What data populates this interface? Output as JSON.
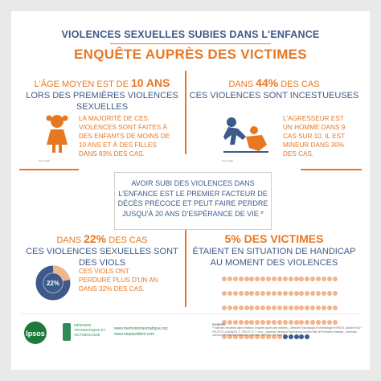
{
  "header": {
    "title_line1": "VIOLENCES SEXUELLES SUBIES DANS L'ENFANCE",
    "title_line2": "ENQUÊTE AUPRÈS DES VICTIMES"
  },
  "panel_top_left": {
    "head_line1_prefix": "L'ÂGE MOYEN EST DE ",
    "head_line1_value": "10 ANS",
    "head_line2": "LORS DES PREMIÈRES VIOLENCES SEXUELLES",
    "stat": "LA MAJORITÉ DE CES VIOLENCES SONT FAITES À DES ENFANTS DE MOINS DE 10 ANS ET À DES FILLES DANS 83% DES CAS.",
    "credit": "Icon credit"
  },
  "panel_top_right": {
    "head_line1_prefix": "DANS ",
    "head_line1_value": "44%",
    "head_line1_suffix": " DES CAS",
    "head_line2": "CES VIOLENCES SONT INCESTUEUSES",
    "stat": "L'AGRESSEUR EST UN HOMME DANS 9 CAS SUR 10. IL EST MINEUR DANS 30% DES CAS.",
    "credit": "Icon credit"
  },
  "center": {
    "text": "AVOIR SUBI DES VIOLENCES DANS L'ENFANCE EST LE PREMIER FACTEUR DE DÉCÈS PRÉCOCE ET PEUT FAIRE PERDRE JUSQU'À 20 ANS D'ESPÉRANCE DE VIE *"
  },
  "panel_bottom_left": {
    "head_line1_prefix": "DANS ",
    "head_line1_value": "22%",
    "head_line1_suffix": " DES CAS",
    "head_line2": "CES VIOLENCES SEXUELLES SONT DES VIOLS",
    "donut_value": 22,
    "donut_label": "22%",
    "stat": "CES VIOLS ONT PERDURÉ PLUS D'UN AN DANS 32% DES CAS."
  },
  "panel_bottom_right": {
    "head_line1_prefix": "",
    "head_line1_value": "5%",
    "head_line1_suffix": " DES VICTIMES",
    "head_line2": "ÉTAIENT EN SITUATION DE HANDICAP",
    "head_line3": "AU MOMENT DES VIOLENCES",
    "dots_total": 100,
    "dots_highlight": 5
  },
  "footer": {
    "ipsos": "Ipsos",
    "memoire": "MÉMOIRE TRAUMATIQUE ET VICTIMOLOGIE",
    "url1": "www.memoiretraumatique.org",
    "url2": "www.stopauddeni.com",
    "sources_title": "SOURCES",
    "sources_text": "* Violences sexuelles dans l'enfance, enquête auprès des victimes – Mémoire Traumatique et Victimologie et IPSOS, octobre 2015 * FELITTI V. et ANDA R. F., FELITTI V. J. et al. – Adverse Childhood Experiences and the Risk of Premature Mortality – American Journal of Preventive Medicine, novembre 2009, Vol. 37 Issue 5"
  },
  "colors": {
    "orange": "#e87722",
    "blue": "#3d5a8a",
    "dot_light": "#f2b48a",
    "dot_dark": "#3d5a8a"
  }
}
